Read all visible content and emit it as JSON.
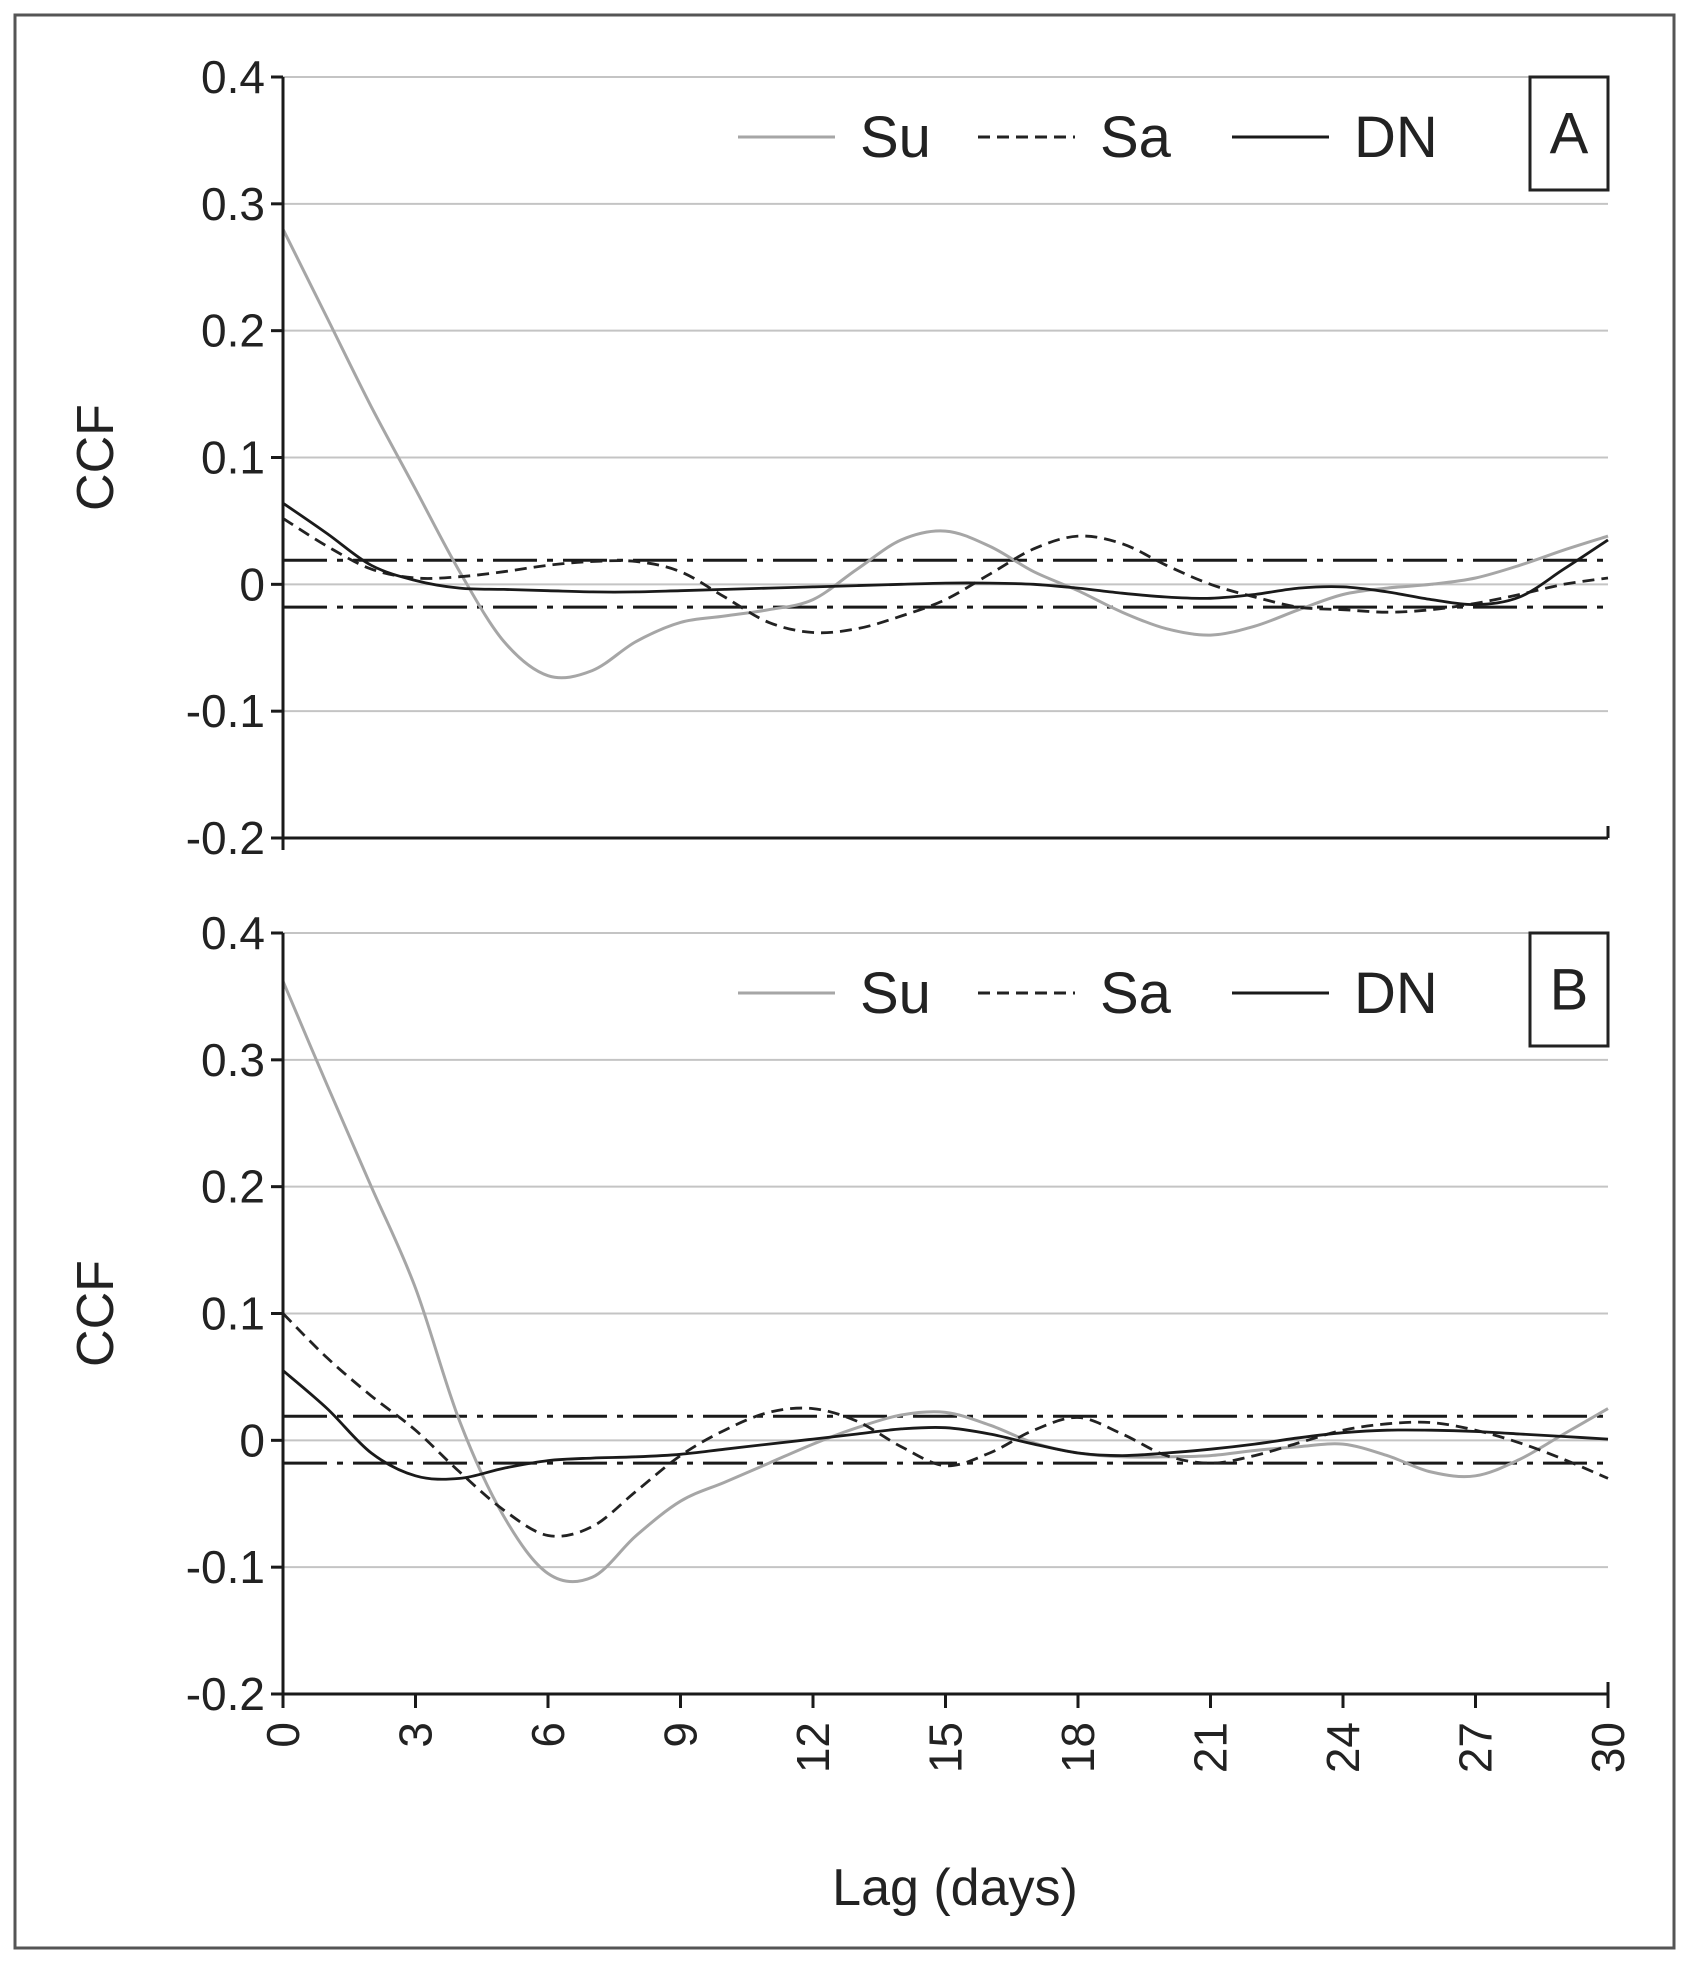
{
  "chart_data": [
    {
      "type": "line",
      "panel": "A",
      "xlabel": "",
      "ylabel": "CCF",
      "xlim": [
        0,
        30
      ],
      "ylim": [
        -0.2,
        0.4
      ],
      "yticks": [
        -0.2,
        -0.1,
        0,
        0.1,
        0.2,
        0.3,
        0.4
      ],
      "ytick_labels": [
        "-0.2",
        "-0.1",
        "0",
        "0.1",
        "0.2",
        "0.3",
        "0.4"
      ],
      "grid": true,
      "legend_position": "top-right",
      "confidence_bounds": [
        0.019,
        -0.018
      ],
      "series": [
        {
          "name": "Su",
          "style": "solid",
          "color": "#a6a6a6",
          "x": [
            0,
            1,
            2,
            3,
            4,
            5,
            6,
            7,
            8,
            9,
            10,
            11,
            12,
            13,
            14,
            15,
            16,
            17,
            18,
            19,
            20,
            21,
            22,
            23,
            24,
            25,
            26,
            27,
            28,
            29,
            30
          ],
          "y": [
            0.28,
            0.21,
            0.14,
            0.075,
            0.01,
            -0.045,
            -0.072,
            -0.068,
            -0.045,
            -0.03,
            -0.025,
            -0.02,
            -0.012,
            0.012,
            0.035,
            0.042,
            0.03,
            0.01,
            -0.005,
            -0.022,
            -0.035,
            -0.04,
            -0.033,
            -0.02,
            -0.008,
            -0.003,
            0.0,
            0.005,
            0.015,
            0.027,
            0.038
          ]
        },
        {
          "name": "Sa",
          "style": "dashed",
          "color": "#222222",
          "x": [
            0,
            1,
            2,
            3,
            4,
            5,
            6,
            7,
            8,
            9,
            10,
            11,
            12,
            13,
            14,
            15,
            16,
            17,
            18,
            19,
            20,
            21,
            22,
            23,
            24,
            25,
            26,
            27,
            28,
            29,
            30
          ],
          "y": [
            0.052,
            0.03,
            0.012,
            0.005,
            0.006,
            0.01,
            0.015,
            0.018,
            0.018,
            0.01,
            -0.01,
            -0.03,
            -0.038,
            -0.035,
            -0.025,
            -0.012,
            0.008,
            0.028,
            0.038,
            0.032,
            0.015,
            0.0,
            -0.01,
            -0.018,
            -0.02,
            -0.022,
            -0.02,
            -0.015,
            -0.008,
            0.0,
            0.005
          ]
        },
        {
          "name": "DN",
          "style": "solid",
          "color": "#1a1a1a",
          "x": [
            0,
            1,
            2,
            3,
            4,
            5,
            6,
            7,
            8,
            9,
            10,
            11,
            12,
            13,
            14,
            15,
            16,
            17,
            18,
            19,
            20,
            21,
            22,
            23,
            24,
            25,
            26,
            27,
            28,
            29,
            30
          ],
          "y": [
            0.064,
            0.04,
            0.015,
            0.003,
            -0.003,
            -0.004,
            -0.005,
            -0.006,
            -0.006,
            -0.005,
            -0.004,
            -0.003,
            -0.002,
            -0.001,
            0.0,
            0.001,
            0.001,
            0.0,
            -0.003,
            -0.007,
            -0.01,
            -0.011,
            -0.008,
            -0.003,
            -0.002,
            -0.006,
            -0.012,
            -0.016,
            -0.01,
            0.012,
            0.035
          ]
        }
      ]
    },
    {
      "type": "line",
      "panel": "B",
      "xlabel": "Lag (days)",
      "ylabel": "CCF",
      "xlim": [
        0,
        30
      ],
      "ylim": [
        -0.2,
        0.4
      ],
      "xticks": [
        0,
        3,
        6,
        9,
        12,
        15,
        18,
        21,
        24,
        27,
        30
      ],
      "xtick_labels": [
        "0",
        "3",
        "6",
        "9",
        "12",
        "15",
        "18",
        "21",
        "24",
        "27",
        "30"
      ],
      "yticks": [
        -0.2,
        -0.1,
        0,
        0.1,
        0.2,
        0.3,
        0.4
      ],
      "ytick_labels": [
        "-0.2",
        "-0.1",
        "0",
        "0.1",
        "0.2",
        "0.3",
        "0.4"
      ],
      "grid": true,
      "legend_position": "top-right",
      "confidence_bounds": [
        0.019,
        -0.018
      ],
      "series": [
        {
          "name": "Su",
          "style": "solid",
          "color": "#a6a6a6",
          "x": [
            0,
            1,
            2,
            3,
            4,
            5,
            6,
            7,
            8,
            9,
            10,
            11,
            12,
            13,
            14,
            15,
            16,
            17,
            18,
            19,
            20,
            21,
            22,
            23,
            24,
            25,
            26,
            27,
            28,
            29,
            30
          ],
          "y": [
            0.362,
            0.28,
            0.2,
            0.12,
            0.015,
            -0.06,
            -0.105,
            -0.108,
            -0.075,
            -0.048,
            -0.033,
            -0.018,
            -0.003,
            0.01,
            0.02,
            0.022,
            0.012,
            -0.002,
            -0.01,
            -0.013,
            -0.013,
            -0.012,
            -0.008,
            -0.005,
            -0.003,
            -0.012,
            -0.025,
            -0.028,
            -0.015,
            0.005,
            0.025
          ]
        },
        {
          "name": "Sa",
          "style": "dashed",
          "color": "#222222",
          "x": [
            0,
            1,
            2,
            3,
            4,
            5,
            6,
            7,
            8,
            9,
            10,
            11,
            12,
            13,
            14,
            15,
            16,
            17,
            18,
            19,
            20,
            21,
            22,
            23,
            24,
            25,
            26,
            27,
            28,
            29,
            30
          ],
          "y": [
            0.1,
            0.065,
            0.035,
            0.008,
            -0.025,
            -0.055,
            -0.075,
            -0.068,
            -0.04,
            -0.012,
            0.008,
            0.022,
            0.025,
            0.015,
            -0.005,
            -0.02,
            -0.01,
            0.008,
            0.018,
            0.005,
            -0.012,
            -0.018,
            -0.012,
            -0.002,
            0.008,
            0.013,
            0.014,
            0.008,
            -0.002,
            -0.015,
            -0.03
          ]
        },
        {
          "name": "DN",
          "style": "solid",
          "color": "#1a1a1a",
          "x": [
            0,
            1,
            2,
            3,
            4,
            5,
            6,
            7,
            8,
            9,
            10,
            11,
            12,
            13,
            14,
            15,
            16,
            17,
            18,
            19,
            20,
            21,
            22,
            23,
            24,
            25,
            26,
            27,
            28,
            29,
            30
          ],
          "y": [
            0.055,
            0.025,
            -0.01,
            -0.028,
            -0.03,
            -0.022,
            -0.016,
            -0.014,
            -0.013,
            -0.011,
            -0.007,
            -0.003,
            0.001,
            0.005,
            0.009,
            0.01,
            0.005,
            -0.003,
            -0.01,
            -0.012,
            -0.01,
            -0.007,
            -0.003,
            0.002,
            0.006,
            0.008,
            0.008,
            0.007,
            0.005,
            0.003,
            0.001
          ]
        }
      ]
    }
  ]
}
